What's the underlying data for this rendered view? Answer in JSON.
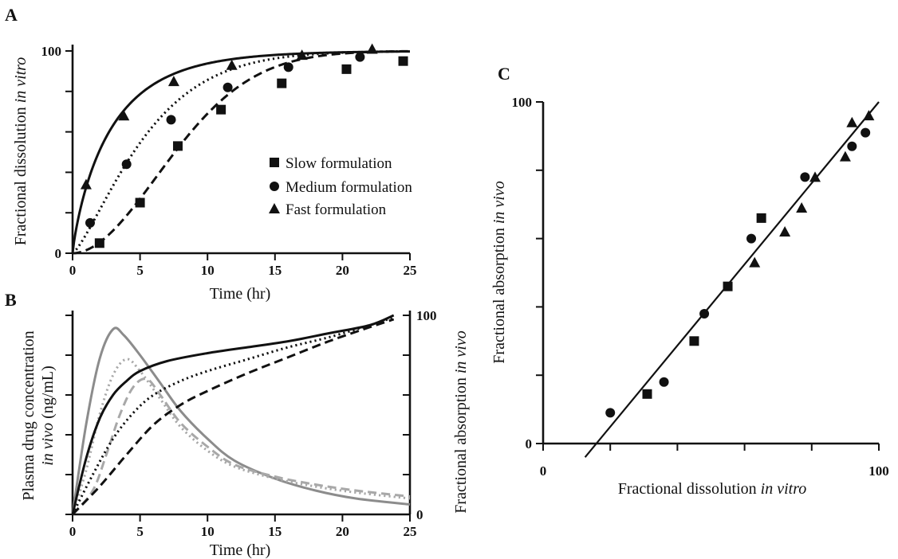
{
  "chart_data": [
    {
      "panel": "A",
      "type": "scatter",
      "xlabel": "Time (hr)",
      "ylabel_main": "Fractional dissolution ",
      "ylabel_italic": "in vitro",
      "xlim": [
        0,
        25
      ],
      "ylim": [
        0,
        100
      ],
      "xticks": [
        "0",
        "5",
        "10",
        "15",
        "20",
        "25"
      ],
      "yticks": [
        "0",
        "100"
      ],
      "legend": {
        "position": "center-right"
      },
      "series": [
        {
          "name": "Slow formulation",
          "marker": "square",
          "line_style": "dashed",
          "curve": {
            "kind": "weibull",
            "td": 9.2,
            "b": 1.9
          },
          "points": [
            [
              2,
              5
            ],
            [
              5,
              25
            ],
            [
              7.8,
              53
            ],
            [
              11,
              71
            ],
            [
              15.5,
              84
            ],
            [
              20.3,
              91
            ],
            [
              24.5,
              95
            ]
          ]
        },
        {
          "name": "Medium formulation",
          "marker": "circle",
          "line_style": "dotted",
          "curve": {
            "kind": "weibull",
            "td": 6.0,
            "b": 1.3
          },
          "points": [
            [
              1.3,
              15
            ],
            [
              4,
              44
            ],
            [
              7.3,
              66
            ],
            [
              11.5,
              82
            ],
            [
              16,
              92
            ],
            [
              21.3,
              97
            ]
          ]
        },
        {
          "name": "Fast formulation",
          "marker": "triangle",
          "line_style": "solid",
          "curve": {
            "kind": "weibull",
            "td": 3.0,
            "b": 0.85
          },
          "points": [
            [
              1,
              34
            ],
            [
              3.8,
              68
            ],
            [
              7.5,
              85
            ],
            [
              11.8,
              93
            ],
            [
              17,
              98
            ],
            [
              22.2,
              101
            ]
          ]
        }
      ]
    },
    {
      "panel": "B",
      "type": "line",
      "xlabel": "Time (hr)",
      "ylabel_main": "Plasma drug concentration",
      "ylabel_italic": "in vivo",
      "ylabel_unit": " (ng/mL)",
      "y2label_main": "Fractional absorption ",
      "y2label_italic": "in vivo",
      "xlim": [
        0,
        25
      ],
      "y2lim": [
        0,
        100
      ],
      "xticks": [
        "0",
        "5",
        "10",
        "15",
        "20",
        "25"
      ],
      "y2ticks": [
        "0",
        "100"
      ],
      "series": [
        {
          "group": "plasma",
          "formulation": "fast",
          "color": "#8c8c8c",
          "line_style": "solid",
          "points": [
            [
              0,
              0
            ],
            [
              1,
              45
            ],
            [
              2,
              78
            ],
            [
              3,
              93
            ],
            [
              3.8,
              90
            ],
            [
              5,
              80
            ],
            [
              6.5,
              66
            ],
            [
              8,
              52
            ],
            [
              10,
              38
            ],
            [
              12,
              27
            ],
            [
              15,
              18
            ],
            [
              18,
              12
            ],
            [
              21,
              8
            ],
            [
              25,
              5
            ]
          ]
        },
        {
          "group": "plasma",
          "formulation": "medium",
          "color": "#a8a8a8",
          "line_style": "dotted",
          "points": [
            [
              0,
              0
            ],
            [
              1,
              22
            ],
            [
              2,
              50
            ],
            [
              3,
              70
            ],
            [
              4,
              78
            ],
            [
              5,
              72
            ],
            [
              6.5,
              58
            ],
            [
              8,
              44
            ],
            [
              10,
              32
            ],
            [
              12,
              24
            ],
            [
              15,
              18
            ],
            [
              18,
              14
            ],
            [
              21,
              11
            ],
            [
              25,
              8
            ]
          ]
        },
        {
          "group": "plasma",
          "formulation": "slow",
          "color": "#a8a8a8",
          "line_style": "dashed",
          "points": [
            [
              0,
              0
            ],
            [
              1.5,
              12
            ],
            [
              2.5,
              30
            ],
            [
              3.5,
              50
            ],
            [
              4.5,
              64
            ],
            [
              5.5,
              68
            ],
            [
              6.5,
              60
            ],
            [
              8,
              46
            ],
            [
              10,
              34
            ],
            [
              12,
              25
            ],
            [
              15,
              19
            ],
            [
              18,
              15
            ],
            [
              21,
              12
            ],
            [
              25,
              9
            ]
          ]
        },
        {
          "group": "absorption",
          "formulation": "fast",
          "color": "#111111",
          "line_style": "solid",
          "points": [
            [
              0,
              0
            ],
            [
              1,
              28
            ],
            [
              2,
              48
            ],
            [
              3,
              60
            ],
            [
              4,
              67
            ],
            [
              5,
              72
            ],
            [
              7,
              77
            ],
            [
              10,
              81
            ],
            [
              13,
              84
            ],
            [
              16,
              87
            ],
            [
              19,
              91
            ],
            [
              22,
              95
            ],
            [
              23.8,
              100
            ]
          ]
        },
        {
          "group": "absorption",
          "formulation": "medium",
          "color": "#111111",
          "line_style": "dotted",
          "points": [
            [
              0,
              0
            ],
            [
              1.5,
              20
            ],
            [
              3,
              38
            ],
            [
              4.5,
              51
            ],
            [
              6,
              60
            ],
            [
              8,
              67
            ],
            [
              10,
              72
            ],
            [
              13,
              78
            ],
            [
              16,
              84
            ],
            [
              19,
              89
            ],
            [
              22,
              95
            ],
            [
              23.8,
              99
            ]
          ]
        },
        {
          "group": "absorption",
          "formulation": "slow",
          "color": "#111111",
          "line_style": "dashed",
          "points": [
            [
              0,
              0
            ],
            [
              2,
              14
            ],
            [
              4,
              30
            ],
            [
              6,
              45
            ],
            [
              8,
              55
            ],
            [
              10,
              62
            ],
            [
              13,
              71
            ],
            [
              16,
              79
            ],
            [
              19,
              87
            ],
            [
              22,
              94
            ],
            [
              23.8,
              98
            ]
          ]
        }
      ]
    },
    {
      "panel": "C",
      "type": "scatter",
      "xlabel_main": "Fractional dissolution ",
      "xlabel_italic": "in vitro",
      "ylabel_main": "Fractional absorption ",
      "ylabel_italic": "in vivo",
      "xlim": [
        0,
        100
      ],
      "ylim": [
        0,
        100
      ],
      "xticks": [
        "0",
        "100"
      ],
      "yticks": [
        "0",
        "100"
      ],
      "fit_line": [
        [
          12.5,
          -4
        ],
        [
          100,
          100
        ]
      ],
      "series": [
        {
          "formulation": "slow",
          "marker": "square",
          "points": [
            [
              31,
              14.5
            ],
            [
              45,
              30
            ],
            [
              55,
              46
            ],
            [
              65,
              66
            ]
          ]
        },
        {
          "formulation": "medium",
          "marker": "circle",
          "points": [
            [
              20,
              9
            ],
            [
              36,
              18
            ],
            [
              48,
              38
            ],
            [
              62,
              60
            ],
            [
              78,
              78
            ],
            [
              92,
              87
            ],
            [
              96,
              91
            ]
          ]
        },
        {
          "formulation": "fast",
          "marker": "triangle",
          "points": [
            [
              63,
              53
            ],
            [
              72,
              62
            ],
            [
              77,
              69
            ],
            [
              81,
              78
            ],
            [
              90,
              84
            ],
            [
              92,
              94
            ],
            [
              97,
              96
            ]
          ]
        }
      ]
    }
  ],
  "ui": {
    "panel_a_letter": "A",
    "panel_b_letter": "B",
    "panel_c_letter": "C",
    "legend": {
      "slow": "Slow formulation",
      "medium": "Medium formulation",
      "fast": "Fast formulation"
    }
  }
}
